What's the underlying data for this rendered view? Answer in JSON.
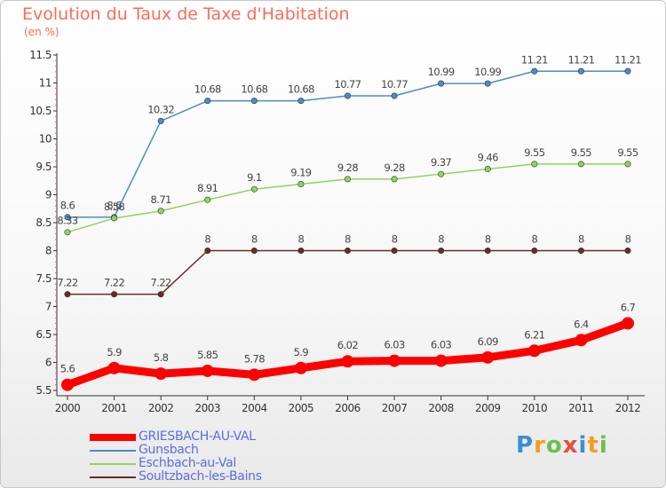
{
  "title": "Evolution du Taux de Taxe d'Habitation",
  "subtitle": "(en %)",
  "logo": {
    "letters": [
      "P",
      "r",
      "o",
      "x",
      "i",
      "t",
      "i"
    ],
    "colors": [
      "#3a8fd6",
      "#f0a020",
      "#6cc04a",
      "#e84d3c",
      "#3a8fd6",
      "#f0a020",
      "#6cc04a"
    ]
  },
  "chart_data": {
    "type": "line",
    "title": "Evolution du Taux de Taxe d'Habitation",
    "ylabel": "(en %)",
    "xlabel": "",
    "x": [
      "2000",
      "2001",
      "2002",
      "2003",
      "2004",
      "2005",
      "2006",
      "2007",
      "2008",
      "2009",
      "2010",
      "2011",
      "2012"
    ],
    "ylim": [
      5.5,
      11.5
    ],
    "yticks": [
      "5.5",
      "6",
      "6.5",
      "7",
      "7.5",
      "8",
      "8.5",
      "9",
      "9.5",
      "10",
      "10.5",
      "11",
      "11.5"
    ],
    "grid": false,
    "legend_position": "bottom-left",
    "series": [
      {
        "name": "GRIESBACH-AU-VAL",
        "color": "#ff0000",
        "emphasis": true,
        "values": [
          5.6,
          5.9,
          5.8,
          5.85,
          5.78,
          5.9,
          6.02,
          6.03,
          6.03,
          6.09,
          6.21,
          6.4,
          6.7
        ],
        "labels": [
          "5.6",
          "5.9",
          "5.8",
          "5.85",
          "5.78",
          "5.9",
          "6.02",
          "6.03",
          "6.03",
          "6.09",
          "6.21",
          "6.4",
          "6.7"
        ]
      },
      {
        "name": "Gunsbach",
        "color": "#4a8ccc",
        "values": [
          8.6,
          8.6,
          10.32,
          10.68,
          10.68,
          10.68,
          10.77,
          10.77,
          10.99,
          10.99,
          11.21,
          11.21,
          11.21
        ],
        "labels": [
          "8.6",
          "8.6",
          "10.32",
          "10.68",
          "10.68",
          "10.68",
          "10.77",
          "10.77",
          "10.99",
          "10.99",
          "11.21",
          "11.21",
          "11.21"
        ]
      },
      {
        "name": "Eschbach-au-Val",
        "color": "#8fd45c",
        "values": [
          8.33,
          8.58,
          8.71,
          8.91,
          9.1,
          9.19,
          9.28,
          9.28,
          9.37,
          9.46,
          9.55,
          9.55,
          9.55
        ],
        "labels": [
          "8.33",
          "8.58",
          "8.71",
          "8.91",
          "9.1",
          "9.19",
          "9.28",
          "9.28",
          "9.37",
          "9.46",
          "9.55",
          "9.55",
          "9.55"
        ]
      },
      {
        "name": "Soultzbach-les-Bains",
        "color": "#6b2a2a",
        "values": [
          7.22,
          7.22,
          7.22,
          8,
          8,
          8,
          8,
          8,
          8,
          8,
          8,
          8,
          8
        ],
        "labels": [
          "7.22",
          "7.22",
          "7.22",
          "8",
          "8",
          "8",
          "8",
          "8",
          "8",
          "8",
          "8",
          "8",
          "8"
        ]
      }
    ]
  }
}
